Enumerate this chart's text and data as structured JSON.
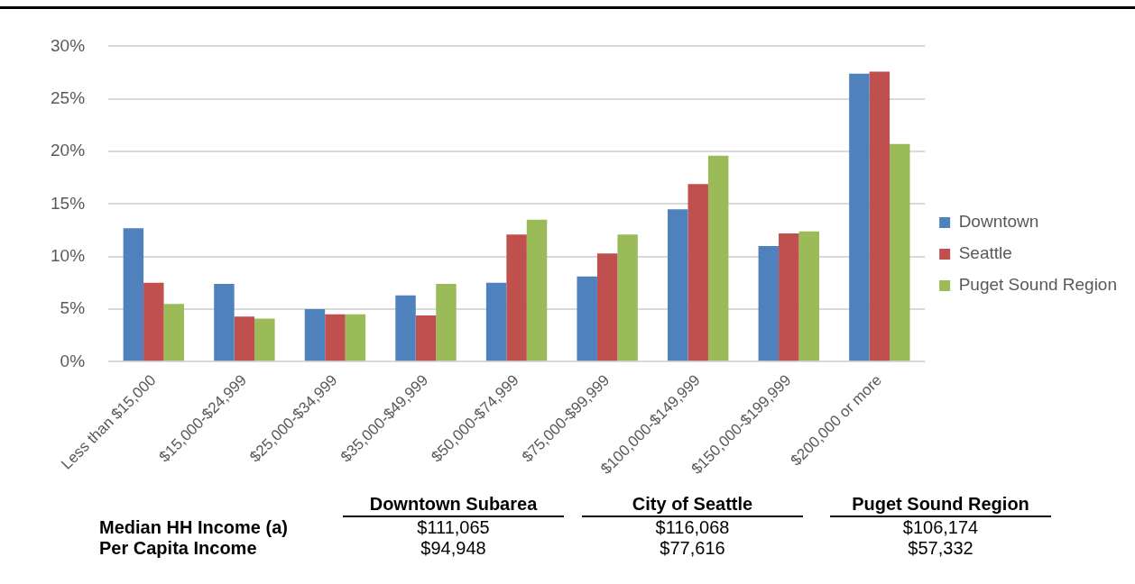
{
  "chart_data": {
    "type": "bar",
    "categories": [
      "Less than $15,000",
      "$15,000-$24,999",
      "$25,000-$34,999",
      "$35,000-$49,999",
      "$50,000-$74,999",
      "$75,000-$99,999",
      "$100,000-$149,999",
      "$150,000-$199,999",
      "$200,000 or more"
    ],
    "series": [
      {
        "name": "Downtown",
        "color": "#4f81bd",
        "values": [
          12.7,
          7.4,
          5.0,
          6.3,
          7.5,
          8.1,
          14.5,
          11.0,
          27.4
        ]
      },
      {
        "name": "Seattle",
        "color": "#c0504d",
        "values": [
          7.5,
          4.3,
          4.5,
          4.4,
          12.1,
          10.3,
          16.9,
          12.2,
          27.6
        ]
      },
      {
        "name": "Puget Sound Region",
        "color": "#9bbb59",
        "values": [
          5.5,
          4.1,
          4.5,
          7.4,
          13.5,
          12.1,
          19.6,
          12.4,
          20.7
        ]
      }
    ],
    "ylim": [
      0,
      30
    ],
    "yticks": [
      {
        "value": 0,
        "label": "0%"
      },
      {
        "value": 5,
        "label": "5%"
      },
      {
        "value": 10,
        "label": "10%"
      },
      {
        "value": 15,
        "label": "15%"
      },
      {
        "value": 20,
        "label": "20%"
      },
      {
        "value": 25,
        "label": "25%"
      },
      {
        "value": 30,
        "label": "30%"
      }
    ],
    "grid": "y",
    "legend": "right",
    "annotations": [
      "Downtown Subarea",
      "City of Seattle",
      "Puget Sound Region",
      "Median HH Income (a)",
      "$111,065",
      "$116,068",
      "$106,174",
      "Per Capita Income",
      "$94,948",
      "$77,616",
      "$57,332"
    ]
  }
}
